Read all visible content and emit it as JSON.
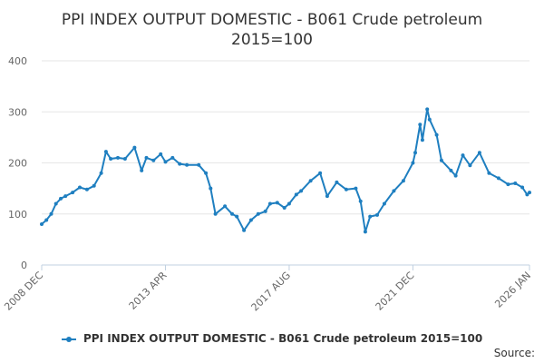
{
  "title_line1": "PPI INDEX OUTPUT DOMESTIC - B061 Crude petroleum",
  "title_line2": "2015=100",
  "source_label": "Source:",
  "colors": {
    "series": "#1f7fc0",
    "grid": "#e6e6e6",
    "axis": "#c0d0e0",
    "text": "#333333"
  },
  "chart_data": {
    "type": "line",
    "title": "PPI INDEX OUTPUT DOMESTIC - B061 Crude petroleum 2015=100",
    "xlabel": "",
    "ylabel": "",
    "ylim": [
      0,
      400
    ],
    "yticks": [
      0,
      100,
      200,
      300,
      400
    ],
    "xticks": [
      "2008 DEC",
      "2013 APR",
      "2017 AUG",
      "2021 DEC",
      "2026 JAN"
    ],
    "grid": true,
    "legend_position": "bottom",
    "series": [
      {
        "name": "PPI INDEX OUTPUT DOMESTIC - B061 Crude petroleum 2015=100",
        "points": [
          [
            "2008 DEC",
            80
          ],
          [
            "2009 FEB",
            88
          ],
          [
            "2009 APR",
            100
          ],
          [
            "2009 JUN",
            120
          ],
          [
            "2009 AUG",
            130
          ],
          [
            "2009 OCT",
            135
          ],
          [
            "2010 JAN",
            142
          ],
          [
            "2010 APR",
            152
          ],
          [
            "2010 JUL",
            148
          ],
          [
            "2010 OCT",
            155
          ],
          [
            "2011 JAN",
            180
          ],
          [
            "2011 MAR",
            222
          ],
          [
            "2011 MAY",
            208
          ],
          [
            "2011 AUG",
            210
          ],
          [
            "2011 NOV",
            208
          ],
          [
            "2012 MAR",
            230
          ],
          [
            "2012 JUN",
            185
          ],
          [
            "2012 AUG",
            210
          ],
          [
            "2012 NOV",
            205
          ],
          [
            "2013 FEB",
            217
          ],
          [
            "2013 APR",
            202
          ],
          [
            "2013 JUL",
            210
          ],
          [
            "2013 OCT",
            198
          ],
          [
            "2014 JAN",
            196
          ],
          [
            "2014 JUN",
            196
          ],
          [
            "2014 SEP",
            180
          ],
          [
            "2014 NOV",
            150
          ],
          [
            "2015 JAN",
            100
          ],
          [
            "2015 MAY",
            115
          ],
          [
            "2015 AUG",
            100
          ],
          [
            "2015 OCT",
            95
          ],
          [
            "2016 JAN",
            68
          ],
          [
            "2016 APR",
            88
          ],
          [
            "2016 JUL",
            100
          ],
          [
            "2016 OCT",
            105
          ],
          [
            "2016 DEC",
            120
          ],
          [
            "2017 MAR",
            122
          ],
          [
            "2017 JUN",
            112
          ],
          [
            "2017 AUG",
            120
          ],
          [
            "2017 NOV",
            138
          ],
          [
            "2018 JAN",
            145
          ],
          [
            "2018 MAY",
            165
          ],
          [
            "2018 SEP",
            180
          ],
          [
            "2018 DEC",
            135
          ],
          [
            "2019 APR",
            162
          ],
          [
            "2019 AUG",
            148
          ],
          [
            "2019 DEC",
            150
          ],
          [
            "2020 FEB",
            125
          ],
          [
            "2020 APR",
            65
          ],
          [
            "2020 JUN",
            95
          ],
          [
            "2020 SEP",
            98
          ],
          [
            "2020 DEC",
            120
          ],
          [
            "2021 APR",
            145
          ],
          [
            "2021 AUG",
            165
          ],
          [
            "2021 DEC",
            200
          ],
          [
            "2022 JAN",
            220
          ],
          [
            "2022 MAR",
            275
          ],
          [
            "2022 APR",
            245
          ],
          [
            "2022 JUN",
            305
          ],
          [
            "2022 JUL",
            285
          ],
          [
            "2022 OCT",
            255
          ],
          [
            "2022 DEC",
            205
          ],
          [
            "2023 APR",
            185
          ],
          [
            "2023 JUN",
            175
          ],
          [
            "2023 SEP",
            215
          ],
          [
            "2023 DEC",
            195
          ],
          [
            "2024 APR",
            220
          ],
          [
            "2024 AUG",
            180
          ],
          [
            "2024 DEC",
            170
          ],
          [
            "2025 APR",
            158
          ],
          [
            "2025 JUL",
            160
          ],
          [
            "2025 OCT",
            152
          ],
          [
            "2025 DEC",
            138
          ],
          [
            "2026 JAN",
            142
          ]
        ]
      }
    ]
  }
}
